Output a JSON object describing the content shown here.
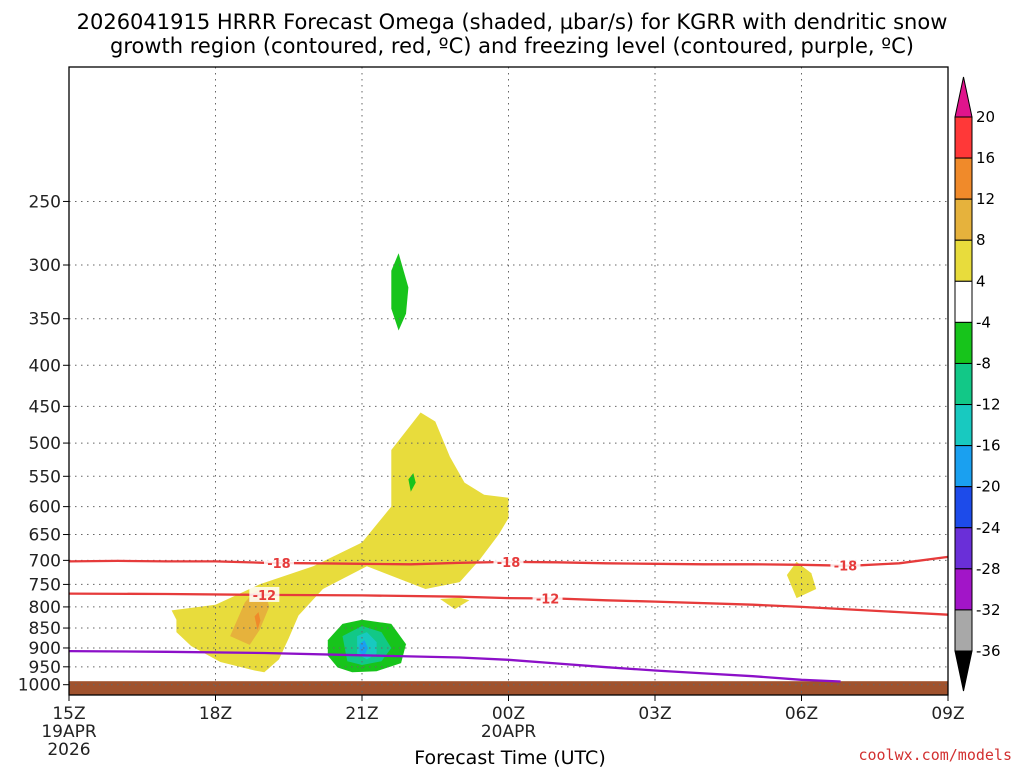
{
  "title_line1": "2026041915 HRRR Forecast Omega (shaded, µbar/s) for KGRR with dendritic snow",
  "title_line2": "growth region (contoured, red, ºC) and freezing level (contoured, purple, ºC)",
  "credit": "coolwx.com/models",
  "chart_data": {
    "type": "time-height cross section",
    "xlabel": "Forecast Time (UTC)",
    "x_ticks": [
      {
        "hour": 0,
        "label": "15Z",
        "sub": [
          "19APR",
          "2026"
        ]
      },
      {
        "hour": 3,
        "label": "18Z",
        "sub": []
      },
      {
        "hour": 6,
        "label": "21Z",
        "sub": []
      },
      {
        "hour": 9,
        "label": "00Z",
        "sub": [
          "20APR"
        ]
      },
      {
        "hour": 12,
        "label": "03Z",
        "sub": []
      },
      {
        "hour": 15,
        "label": "06Z",
        "sub": []
      },
      {
        "hour": 18,
        "label": "09Z",
        "sub": []
      }
    ],
    "xlim_hours": [
      0,
      18
    ],
    "y_ticks": [
      250,
      300,
      350,
      400,
      450,
      500,
      550,
      600,
      650,
      700,
      750,
      800,
      850,
      900,
      950,
      1000
    ],
    "ylim_hpa": [
      170,
      1030
    ],
    "y_scale": "log-pressure",
    "grid": true,
    "ground_level_hpa": 990,
    "ground_color": "#a0522d",
    "colorbar": {
      "levels": [
        {
          "label": "20",
          "color": "#ff3838"
        },
        {
          "label": "16",
          "color": "#f08a2a"
        },
        {
          "label": "12",
          "color": "#e6b23c"
        },
        {
          "label": "8",
          "color": "#e8dc3c"
        },
        {
          "label": "4",
          "color": "#ffffff"
        },
        {
          "label": "-4",
          "color": "#17c41b"
        },
        {
          "label": "-8",
          "color": "#12c887"
        },
        {
          "label": "-12",
          "color": "#18c9c0"
        },
        {
          "label": "-16",
          "color": "#1aa0f0"
        },
        {
          "label": "-20",
          "color": "#1d4bea"
        },
        {
          "label": "-24",
          "color": "#6a2fd8"
        },
        {
          "label": "-28",
          "color": "#a215c8"
        },
        {
          "label": "-32",
          "color": "#a8a8a8"
        },
        {
          "label": "-36",
          "color": ""
        }
      ],
      "top_color": "#e0148c",
      "bottom_color": "#000000"
    },
    "contours": [
      {
        "label": "-18",
        "color": "#e63b3b",
        "points": [
          [
            0,
            702
          ],
          [
            1,
            701
          ],
          [
            2,
            702
          ],
          [
            3,
            702
          ],
          [
            4,
            705
          ],
          [
            5,
            706
          ],
          [
            6,
            707
          ],
          [
            7,
            708
          ],
          [
            8,
            705
          ],
          [
            9,
            703
          ],
          [
            10,
            704
          ],
          [
            11,
            706
          ],
          [
            12,
            707
          ],
          [
            13,
            708
          ],
          [
            14,
            708
          ],
          [
            15,
            709
          ],
          [
            16,
            711
          ],
          [
            17,
            706
          ],
          [
            18,
            693
          ]
        ],
        "label_hours": [
          4.3,
          9.0,
          15.9
        ]
      },
      {
        "label": "-12",
        "color": "#e63b3b",
        "points": [
          [
            0,
            770
          ],
          [
            2,
            771
          ],
          [
            4,
            773
          ],
          [
            6,
            774
          ],
          [
            8,
            777
          ],
          [
            9,
            780
          ],
          [
            10,
            781
          ],
          [
            11,
            785
          ],
          [
            12,
            788
          ],
          [
            14,
            795
          ],
          [
            15,
            800
          ],
          [
            16,
            806
          ],
          [
            17,
            812
          ],
          [
            18,
            818
          ]
        ],
        "label_hours": [
          4.0,
          9.8
        ]
      },
      {
        "label": "",
        "color": "#8c10c8",
        "points": [
          [
            0,
            908
          ],
          [
            2,
            910
          ],
          [
            4,
            913
          ],
          [
            6,
            919
          ],
          [
            8,
            925
          ],
          [
            9,
            931
          ],
          [
            10,
            941
          ],
          [
            11,
            951
          ],
          [
            12,
            960
          ],
          [
            13,
            968
          ],
          [
            14,
            976
          ],
          [
            15,
            986
          ],
          [
            15.8,
            991
          ]
        ],
        "label_hours": []
      }
    ],
    "omega_regions": [
      {
        "color": "#e8dc3c",
        "points": [
          [
            2.1,
            808
          ],
          [
            3.0,
            795
          ],
          [
            3.9,
            750
          ],
          [
            5.0,
            712
          ],
          [
            6.0,
            665
          ],
          [
            6.6,
            600
          ],
          [
            6.6,
            510
          ],
          [
            7.2,
            458
          ],
          [
            7.5,
            470
          ],
          [
            7.8,
            520
          ],
          [
            8.1,
            560
          ],
          [
            8.5,
            580
          ],
          [
            9.0,
            585
          ],
          [
            9.0,
            620
          ],
          [
            8.8,
            650
          ],
          [
            8.4,
            700
          ],
          [
            8.0,
            745
          ],
          [
            7.3,
            760
          ],
          [
            6.1,
            712
          ],
          [
            5.2,
            760
          ],
          [
            4.7,
            820
          ],
          [
            4.5,
            875
          ],
          [
            4.3,
            930
          ],
          [
            4.0,
            965
          ],
          [
            3.8,
            960
          ],
          [
            3.1,
            937
          ],
          [
            2.5,
            895
          ],
          [
            2.2,
            860
          ],
          [
            2.2,
            830
          ]
        ]
      },
      {
        "color": "#e8dc3c",
        "points": [
          [
            7.6,
            782
          ],
          [
            8.0,
            779
          ],
          [
            8.2,
            785
          ],
          [
            7.9,
            805
          ]
        ]
      },
      {
        "color": "#e8dc3c",
        "points": [
          [
            14.7,
            730
          ],
          [
            14.9,
            703
          ],
          [
            15.2,
            726
          ],
          [
            15.3,
            760
          ],
          [
            14.9,
            780
          ]
        ]
      },
      {
        "color": "#e6b23c",
        "points": [
          [
            3.3,
            870
          ],
          [
            3.6,
            790
          ],
          [
            3.8,
            765
          ],
          [
            4.0,
            760
          ],
          [
            4.1,
            800
          ],
          [
            3.9,
            855
          ],
          [
            3.7,
            892
          ]
        ]
      },
      {
        "color": "#f08a2a",
        "points": [
          [
            3.8,
            822
          ],
          [
            3.88,
            812
          ],
          [
            3.92,
            832
          ],
          [
            3.86,
            855
          ]
        ]
      },
      {
        "color": "#17c41b",
        "points": [
          [
            5.3,
            880
          ],
          [
            5.6,
            840
          ],
          [
            6.0,
            830
          ],
          [
            6.6,
            840
          ],
          [
            6.9,
            890
          ],
          [
            6.8,
            940
          ],
          [
            6.3,
            962
          ],
          [
            5.8,
            965
          ],
          [
            5.5,
            952
          ],
          [
            5.3,
            920
          ]
        ]
      },
      {
        "color": "#12c887",
        "points": [
          [
            5.6,
            870
          ],
          [
            6.0,
            845
          ],
          [
            6.4,
            860
          ],
          [
            6.6,
            900
          ],
          [
            6.4,
            935
          ],
          [
            6.0,
            945
          ],
          [
            5.7,
            935
          ]
        ]
      },
      {
        "color": "#18c9c0",
        "points": [
          [
            5.9,
            870
          ],
          [
            6.1,
            860
          ],
          [
            6.3,
            885
          ],
          [
            6.3,
            915
          ],
          [
            6.1,
            930
          ],
          [
            5.9,
            915
          ]
        ]
      },
      {
        "color": "#1aa0f0",
        "points": [
          [
            5.95,
            890
          ],
          [
            6.05,
            880
          ],
          [
            6.12,
            900
          ],
          [
            6.05,
            920
          ],
          [
            5.95,
            912
          ]
        ]
      },
      {
        "color": "#17c41b",
        "points": [
          [
            6.95,
            555
          ],
          [
            7.05,
            545
          ],
          [
            7.1,
            560
          ],
          [
            7.0,
            575
          ]
        ]
      },
      {
        "color": "#17c41b",
        "points": [
          [
            6.6,
            305
          ],
          [
            6.75,
            290
          ],
          [
            6.95,
            320
          ],
          [
            6.9,
            345
          ],
          [
            6.75,
            362
          ],
          [
            6.6,
            340
          ]
        ]
      }
    ]
  }
}
